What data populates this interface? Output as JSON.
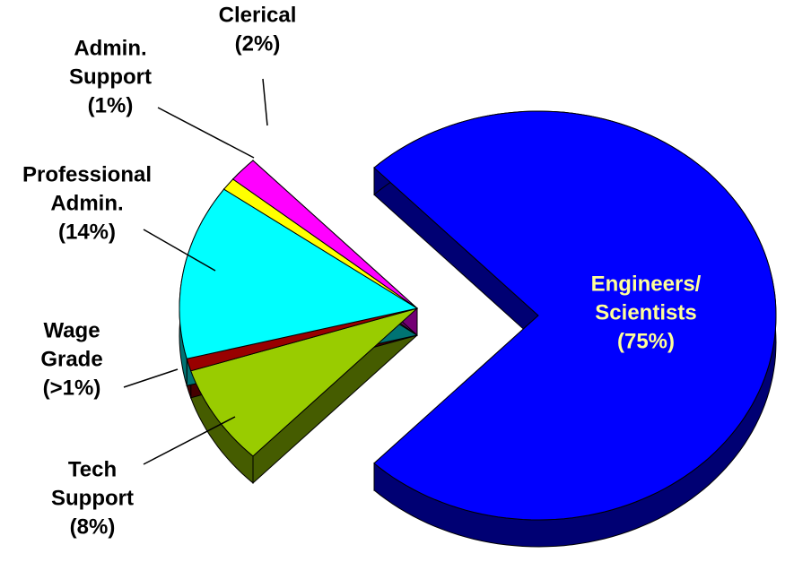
{
  "chart_data": {
    "type": "pie3d",
    "categories": [
      [
        "Engineers/",
        "Scientists"
      ],
      [
        "Tech",
        "Support"
      ],
      [
        "Wage",
        "Grade"
      ],
      [
        "Professional",
        "Admin."
      ],
      [
        "Admin.",
        "Support"
      ],
      [
        "Clerical"
      ]
    ],
    "values": [
      75,
      8,
      1,
      14,
      1,
      2
    ],
    "value_labels": [
      "(75%)",
      "(8%)",
      "(>1%)",
      "(14%)",
      "(1%)",
      "(2%)"
    ],
    "colors": [
      "#0000ff",
      "#99cc00",
      "#990000",
      "#00ffff",
      "#ffff00",
      "#ff00ff"
    ],
    "exploded": [
      false,
      true,
      true,
      true,
      true,
      true
    ]
  }
}
